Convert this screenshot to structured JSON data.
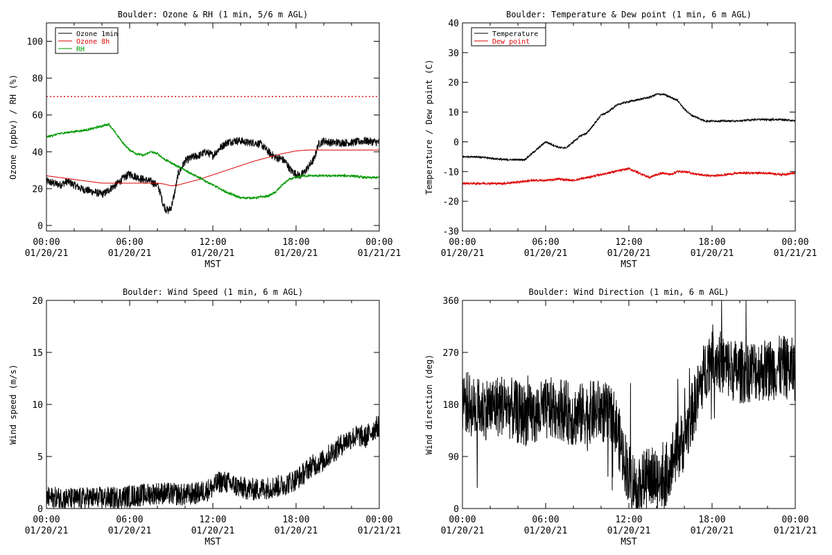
{
  "chart_data": [
    {
      "id": "ozone",
      "type": "line",
      "title": "Boulder: Ozone & RH (1 min, 5/6 m AGL)",
      "ylabel": "Ozone (ppbv) / RH (%)",
      "xlabel": "MST",
      "xlim": [
        0,
        24
      ],
      "ylim": [
        -3,
        110
      ],
      "x_ticks": [
        {
          "pos": 0,
          "time": "00:00",
          "date": "01/20/21"
        },
        {
          "pos": 6,
          "time": "06:00",
          "date": "01/20/21"
        },
        {
          "pos": 12,
          "time": "12:00",
          "date": "01/20/21"
        },
        {
          "pos": 18,
          "time": "18:00",
          "date": "01/20/21"
        },
        {
          "pos": 24,
          "time": "00:00",
          "date": "01/21/21"
        }
      ],
      "y_ticks": [
        0,
        20,
        40,
        60,
        80,
        100
      ],
      "y_tick_labels": [
        "0",
        "20",
        "40",
        "60",
        "80",
        "100"
      ],
      "legend": "top-left",
      "reference_line": {
        "y": 70,
        "color": "#dd0000",
        "style": "dotted"
      },
      "series": [
        {
          "name": "Ozone 1min",
          "color": "#000000",
          "noise": 2.2,
          "x": [
            0,
            0.5,
            1,
            1.5,
            2,
            2.5,
            3,
            3.5,
            4,
            4.3,
            4.6,
            5,
            5.3,
            5.6,
            6,
            6.3,
            6.6,
            7,
            7.5,
            8,
            8.2,
            8.4,
            8.6,
            8.8,
            9,
            9.2,
            9.5,
            10,
            10.5,
            11,
            11.5,
            12,
            12.5,
            13,
            13.5,
            14,
            14.5,
            15,
            15.5,
            16,
            16.5,
            17,
            17.3,
            17.6,
            18,
            18.3,
            18.6,
            19,
            19.3,
            19.6,
            20,
            20.5,
            21,
            22,
            23,
            24
          ],
          "y": [
            24,
            23,
            22,
            24,
            22,
            20,
            19,
            18,
            17,
            18,
            20,
            22,
            24,
            26,
            28,
            27,
            26,
            25,
            24,
            22,
            18,
            12,
            9,
            8,
            10,
            16,
            28,
            35,
            37,
            38,
            40,
            38,
            42,
            45,
            46,
            46,
            45,
            45,
            44,
            40,
            37,
            36,
            34,
            30,
            28,
            27,
            29,
            33,
            36,
            44,
            46,
            45,
            45,
            45,
            46,
            45
          ]
        },
        {
          "name": "Ozone 8h",
          "color": "#dd0000",
          "noise": 0,
          "x": [
            0,
            1,
            2,
            3,
            4,
            5,
            6,
            7,
            8,
            8.5,
            9,
            9.5,
            10,
            11,
            12,
            13,
            14,
            15,
            16,
            17,
            18,
            18.5,
            19,
            20,
            21,
            22,
            23,
            24
          ],
          "y": [
            27,
            26,
            25,
            24,
            23,
            23,
            23,
            23,
            23,
            22.5,
            21.5,
            22,
            23,
            25,
            27.5,
            30,
            32.5,
            35,
            37,
            39,
            40.5,
            40.8,
            41,
            41,
            41,
            41,
            41,
            41
          ]
        },
        {
          "name": "RH",
          "color": "#009900",
          "noise": 0.6,
          "x": [
            0,
            0.5,
            1,
            2,
            3,
            3.5,
            4,
            4.5,
            5,
            5.3,
            5.6,
            6,
            6.5,
            7,
            7.5,
            8,
            8.5,
            9,
            9.5,
            10,
            10.5,
            11,
            11.5,
            12,
            12.5,
            13,
            14,
            15,
            16,
            16.5,
            17,
            17.5,
            18,
            18.5,
            19,
            20,
            21,
            22,
            23,
            24
          ],
          "y": [
            48,
            49,
            50,
            51,
            52,
            53,
            54,
            55,
            50,
            47,
            44,
            41,
            39,
            38,
            40,
            39,
            36,
            34,
            32,
            30,
            28,
            26,
            24,
            22,
            20,
            18,
            15,
            15,
            16,
            18,
            22,
            25,
            26,
            27,
            27,
            27,
            27,
            27,
            26,
            26
          ]
        }
      ]
    },
    {
      "id": "temp",
      "type": "line",
      "title": "Boulder: Temperature & Dew point (1 min, 6 m AGL)",
      "ylabel": "Temperature / Dew point (C)",
      "xlabel": "MST",
      "xlim": [
        0,
        24
      ],
      "ylim": [
        -30,
        40
      ],
      "x_ticks": [
        {
          "pos": 0,
          "time": "00:00",
          "date": "01/20/21"
        },
        {
          "pos": 6,
          "time": "06:00",
          "date": "01/20/21"
        },
        {
          "pos": 12,
          "time": "12:00",
          "date": "01/20/21"
        },
        {
          "pos": 18,
          "time": "18:00",
          "date": "01/20/21"
        },
        {
          "pos": 24,
          "time": "00:00",
          "date": "01/21/21"
        }
      ],
      "y_ticks": [
        -30,
        -20,
        -10,
        0,
        10,
        20,
        30,
        40
      ],
      "y_tick_labels": [
        "-30",
        "-20",
        "-10",
        "0",
        "10",
        "20",
        "30",
        "40"
      ],
      "legend": "top-left",
      "series": [
        {
          "name": "Temperature",
          "color": "#000000",
          "noise": 0.3,
          "x": [
            0,
            1,
            2,
            3,
            4,
            4.5,
            5,
            5.5,
            6,
            6.5,
            7,
            7.5,
            8,
            8.5,
            9,
            9.5,
            10,
            10.5,
            11,
            11.5,
            12,
            12.5,
            13,
            13.5,
            14,
            14.5,
            15,
            15.5,
            16,
            16.5,
            17,
            17.5,
            18,
            19,
            20,
            21,
            22,
            23,
            24
          ],
          "y": [
            -5,
            -5,
            -5.5,
            -6,
            -6,
            -6,
            -4,
            -2,
            0,
            -1,
            -2,
            -2,
            0,
            2,
            3,
            6,
            9,
            10,
            12,
            13,
            13.5,
            14,
            14.5,
            15,
            16,
            16,
            15,
            14,
            11,
            9,
            8,
            7,
            7,
            7,
            7,
            7.5,
            7.5,
            7.5,
            7
          ]
        },
        {
          "name": "Dew point",
          "color": "#dd0000",
          "noise": 0.35,
          "x": [
            0,
            1,
            2,
            3,
            4,
            5,
            6,
            7,
            8,
            9,
            10,
            11,
            12,
            12.5,
            13,
            13.5,
            14,
            14.5,
            15,
            15.5,
            16,
            17,
            18,
            19,
            20,
            21,
            22,
            23,
            24
          ],
          "y": [
            -14,
            -14,
            -14,
            -14,
            -13.5,
            -13,
            -13,
            -12.5,
            -13,
            -12,
            -11,
            -10,
            -9,
            -10,
            -11,
            -12,
            -11,
            -10.5,
            -11,
            -10,
            -10,
            -11,
            -11.5,
            -11,
            -10.5,
            -10.5,
            -10.5,
            -11,
            -10.5
          ]
        }
      ]
    },
    {
      "id": "wspd",
      "type": "line",
      "title": "Boulder: Wind Speed (1 min, 6 m AGL)",
      "ylabel": "Wind speed (m/s)",
      "xlabel": "MST",
      "xlim": [
        0,
        24
      ],
      "ylim": [
        0,
        20
      ],
      "x_ticks": [
        {
          "pos": 0,
          "time": "00:00",
          "date": "01/20/21"
        },
        {
          "pos": 6,
          "time": "06:00",
          "date": "01/20/21"
        },
        {
          "pos": 12,
          "time": "12:00",
          "date": "01/20/21"
        },
        {
          "pos": 18,
          "time": "18:00",
          "date": "01/20/21"
        },
        {
          "pos": 24,
          "time": "00:00",
          "date": "01/21/21"
        }
      ],
      "y_ticks": [
        0,
        5,
        10,
        15,
        20
      ],
      "y_tick_labels": [
        "0",
        "5",
        "10",
        "15",
        "20"
      ],
      "legend": "none",
      "series": [
        {
          "name": "",
          "color": "#000000",
          "noise": 1.1,
          "floor": 0,
          "x": [
            0,
            1,
            2,
            3,
            4,
            5,
            6,
            7,
            8,
            9,
            10,
            11,
            12,
            12.5,
            13,
            14,
            15,
            16,
            17,
            18,
            18.5,
            19,
            19.5,
            20,
            20.5,
            21,
            21.5,
            22,
            22.5,
            23,
            23.5,
            24
          ],
          "y": [
            1,
            1,
            0.9,
            1,
            1,
            1,
            1.2,
            1.3,
            1.5,
            1.4,
            1.3,
            1.5,
            2,
            2.6,
            2.5,
            2,
            1.8,
            2,
            2.2,
            2.8,
            3.3,
            4,
            4.3,
            4.6,
            5.3,
            5.8,
            6.4,
            6.8,
            7,
            6.8,
            7.5,
            8
          ]
        }
      ]
    },
    {
      "id": "wdir",
      "type": "line",
      "title": "Boulder: Wind Direction (1 min, 6 m AGL)",
      "ylabel": "Wind direction (deg)",
      "xlabel": "MST",
      "xlim": [
        0,
        24
      ],
      "ylim": [
        0,
        360
      ],
      "x_ticks": [
        {
          "pos": 0,
          "time": "00:00",
          "date": "01/20/21"
        },
        {
          "pos": 6,
          "time": "06:00",
          "date": "01/20/21"
        },
        {
          "pos": 12,
          "time": "12:00",
          "date": "01/20/21"
        },
        {
          "pos": 18,
          "time": "18:00",
          "date": "01/20/21"
        },
        {
          "pos": 24,
          "time": "00:00",
          "date": "01/21/21"
        }
      ],
      "y_ticks": [
        0,
        90,
        180,
        270,
        360
      ],
      "y_tick_labels": [
        "0",
        "90",
        "180",
        "270",
        "360"
      ],
      "legend": "none",
      "series": [
        {
          "name": "",
          "color": "#000000",
          "noise": 55,
          "floor": 0,
          "ceil": 360,
          "x": [
            0,
            1,
            2,
            3,
            4,
            5,
            6,
            7,
            8,
            9,
            10,
            11,
            11.5,
            12,
            12.5,
            13,
            13.5,
            14,
            14.5,
            15,
            15.5,
            16,
            16.5,
            17,
            17.5,
            18,
            18.5,
            19,
            20,
            21,
            22,
            23,
            24
          ],
          "y": [
            190,
            170,
            175,
            180,
            165,
            160,
            170,
            175,
            160,
            165,
            170,
            150,
            100,
            60,
            40,
            45,
            55,
            50,
            45,
            80,
            100,
            120,
            160,
            200,
            240,
            270,
            255,
            245,
            235,
            240,
            240,
            245,
            240
          ]
        }
      ]
    }
  ]
}
